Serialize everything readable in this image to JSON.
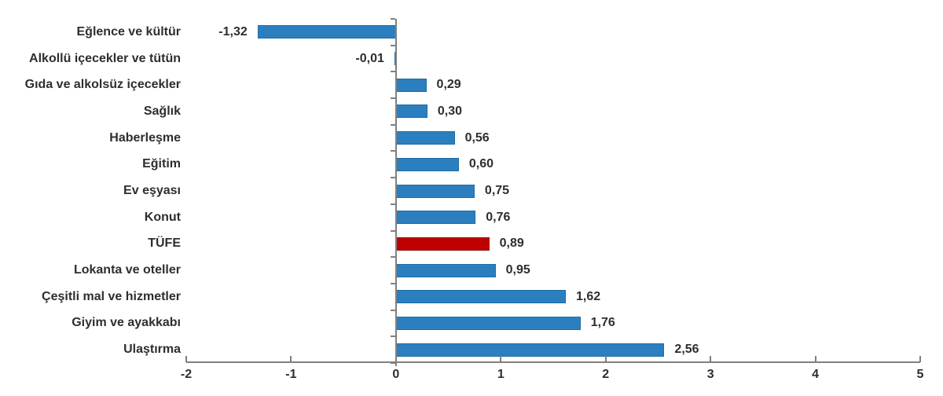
{
  "chart_data": {
    "type": "bar",
    "orientation": "horizontal",
    "title": "",
    "xlabel": "",
    "ylabel": "",
    "grid": false,
    "legend": false,
    "categories": [
      "Eğlence ve kültür",
      "Alkollü içecekler ve tütün",
      "Gıda ve alkolsüz içecekler",
      "Sağlık",
      "Haberleşme",
      "Eğitim",
      "Ev eşyası",
      "Konut",
      "TÜFE",
      "Lokanta ve oteller",
      "Çeşitli mal ve hizmetler",
      "Giyim ve ayakkabı",
      "Ulaştırma"
    ],
    "values": [
      -1.32,
      -0.01,
      0.29,
      0.3,
      0.56,
      0.6,
      0.75,
      0.76,
      0.89,
      0.95,
      1.62,
      1.76,
      2.56
    ],
    "value_labels": [
      "-1,32",
      "-0,01",
      "0,29",
      "0,30",
      "0,56",
      "0,60",
      "0,75",
      "0,76",
      "0,89",
      "0,95",
      "1,62",
      "1,76",
      "2,56"
    ],
    "highlight_index": 8,
    "highlight_category": "TÜFE",
    "xlim": [
      -2,
      5
    ],
    "x_ticks": [
      "-2",
      "-1",
      "0",
      "1",
      "2",
      "3",
      "4",
      "5"
    ],
    "x_tick_values": [
      -2,
      -1,
      0,
      1,
      2,
      3,
      4,
      5
    ],
    "colors": {
      "bar_fill": "#2C7FBF",
      "bar_border": "#1E6CA4",
      "highlight_fill": "#C00000",
      "highlight_border": "#8F1010",
      "axis": "#808080",
      "text": "#2E2E2E"
    }
  }
}
